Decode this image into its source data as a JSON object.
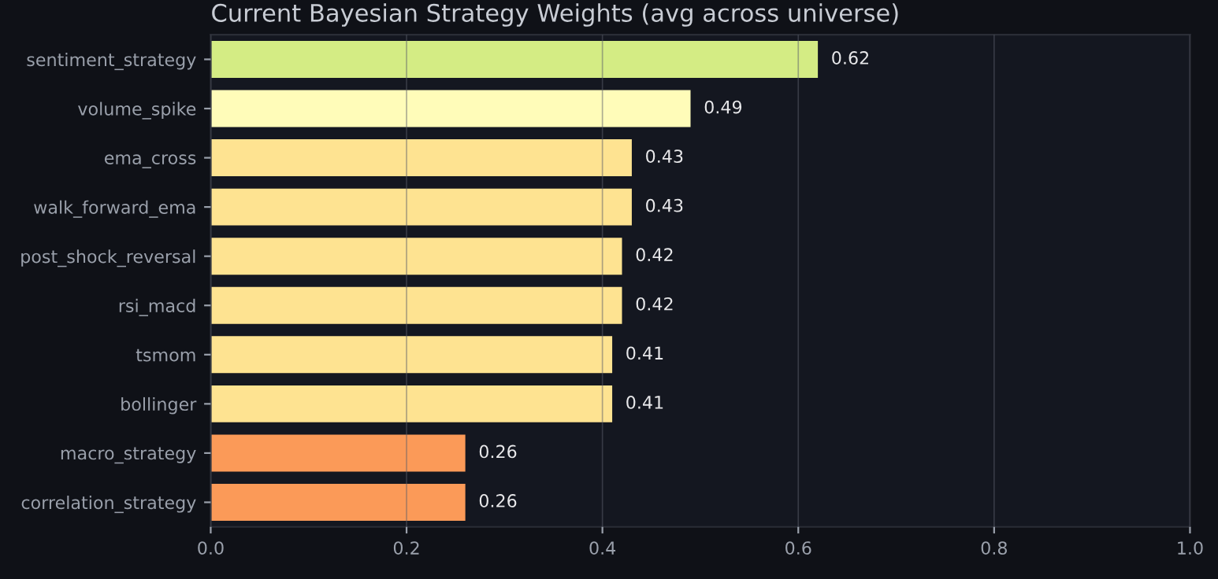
{
  "chart_data": {
    "type": "bar",
    "orientation": "horizontal",
    "title": "Current Bayesian Strategy Weights (avg across universe)",
    "categories": [
      "sentiment_strategy",
      "volume_spike",
      "ema_cross",
      "walk_forward_ema",
      "post_shock_reversal",
      "rsi_macd",
      "tsmom",
      "bollinger",
      "macro_strategy",
      "correlation_strategy"
    ],
    "values": [
      0.62,
      0.49,
      0.43,
      0.43,
      0.42,
      0.42,
      0.41,
      0.41,
      0.26,
      0.26
    ],
    "colors": [
      "#d4ec84",
      "#fffcb9",
      "#fee391",
      "#fee391",
      "#fee391",
      "#fee391",
      "#fee391",
      "#fee391",
      "#fb9a58",
      "#fb9a58"
    ],
    "xlim": [
      0,
      1
    ],
    "xticks": [
      {
        "value": 0,
        "label": "0.0"
      },
      {
        "value": 0.2,
        "label": "0.2"
      },
      {
        "value": 0.4,
        "label": "0.4"
      },
      {
        "value": 0.6,
        "label": "0.6"
      },
      {
        "value": 0.8,
        "label": "0.8"
      },
      {
        "value": 1,
        "label": "1.0"
      }
    ],
    "grid": "x",
    "data_labels": true
  }
}
